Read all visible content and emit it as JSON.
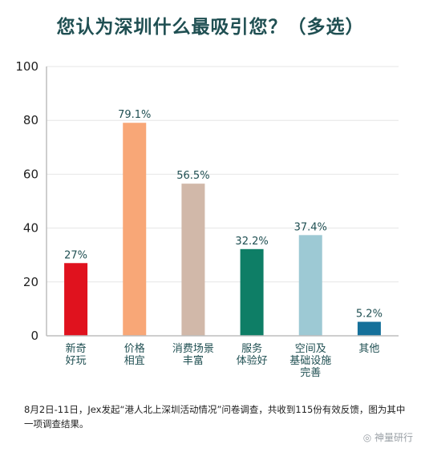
{
  "chart_data": {
    "type": "bar",
    "title": "您认为深圳什么最吸引您？（多选）",
    "categories": [
      [
        "新奇",
        "好玩"
      ],
      [
        "价格",
        "相宜"
      ],
      [
        "消费场景",
        "丰富"
      ],
      [
        "服务",
        "体验好"
      ],
      [
        "空间及",
        "基础设施",
        "完善"
      ],
      [
        "其他"
      ]
    ],
    "values": [
      27,
      79.1,
      56.5,
      32.2,
      37.4,
      5.2
    ],
    "value_labels": [
      "27%",
      "79.1%",
      "56.5%",
      "32.2%",
      "37.4%",
      "5.2%"
    ],
    "colors": [
      "#e0121e",
      "#f8a777",
      "#d1b8a9",
      "#0e7e66",
      "#9dc9d4",
      "#15709a"
    ],
    "ylim": [
      0,
      100
    ],
    "yticks": [
      0,
      20,
      40,
      60,
      80,
      100
    ],
    "grid": true
  },
  "note": "8月2日-11日，Jex发起“港人北上深圳活动情况”问卷调查，共收到115份有效反馈，图为其中一项调查结果。",
  "watermark": "神量研行"
}
